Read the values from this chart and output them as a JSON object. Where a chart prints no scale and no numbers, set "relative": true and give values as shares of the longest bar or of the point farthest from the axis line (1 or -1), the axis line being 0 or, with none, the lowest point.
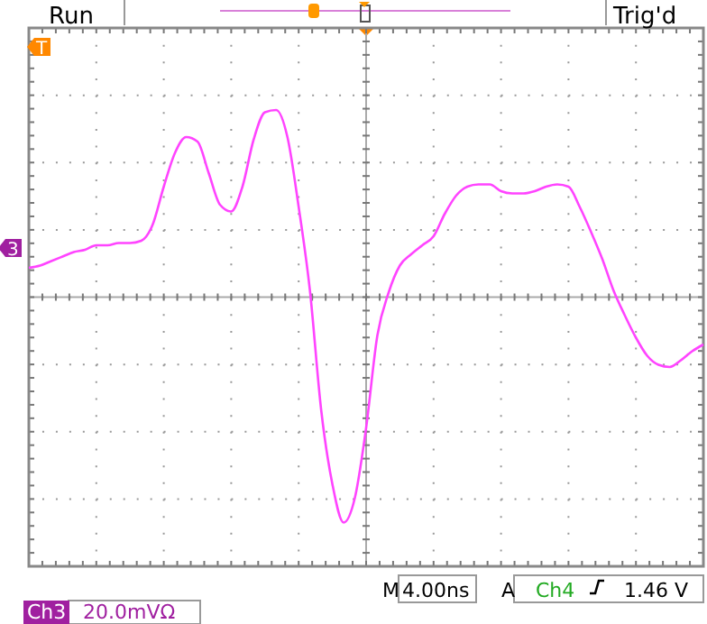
{
  "chart_data": {
    "type": "line",
    "relative": true,
    "grid": true,
    "marker": "none",
    "line_style": "solid",
    "categories": [
      null,
      null,
      null,
      null,
      null,
      null,
      null,
      null,
      null,
      null,
      null,
      null,
      null,
      null,
      null,
      null,
      null,
      null,
      null,
      null,
      null,
      null,
      null,
      null,
      null,
      null,
      null,
      null,
      null,
      null,
      null,
      null,
      null,
      null,
      null,
      null,
      null,
      null,
      null,
      null,
      null,
      null,
      null,
      null,
      null,
      null,
      null,
      null,
      null,
      null,
      null,
      null,
      null,
      null,
      null,
      null,
      null,
      null,
      null,
      null,
      null
    ],
    "series": [
      {
        "color": "#ff44ff",
        "values": [
          0.13,
          0.14,
          0.16,
          0.18,
          0.2,
          0.21,
          0.23,
          0.23,
          0.24,
          0.24,
          0.25,
          0.32,
          0.49,
          0.64,
          0.71,
          0.69,
          0.55,
          0.41,
          0.38,
          0.49,
          0.7,
          0.82,
          0.83,
          0.71,
          0.4,
          0.03,
          -0.5,
          -0.83,
          -1,
          -0.89,
          -0.58,
          -0.17,
          0.02,
          0.14,
          0.19,
          0.23,
          0.27,
          0.37,
          0.45,
          0.49,
          0.5,
          0.5,
          0.47,
          0.46,
          0.46,
          0.47,
          0.49,
          0.5,
          0.49,
          0.4,
          0.29,
          0.17,
          0.03,
          -0.08,
          -0.18,
          -0.26,
          -0.3,
          -0.31,
          -0.28,
          -0.24,
          -0.21
        ]
      }
    ],
    "annotations": [
      "Run",
      "Trig'd",
      "M",
      "4.00ns",
      "A",
      "Ch4",
      "1.46 V",
      "Ch3",
      "20.0mVΩ",
      "T",
      "3"
    ]
  }
}
